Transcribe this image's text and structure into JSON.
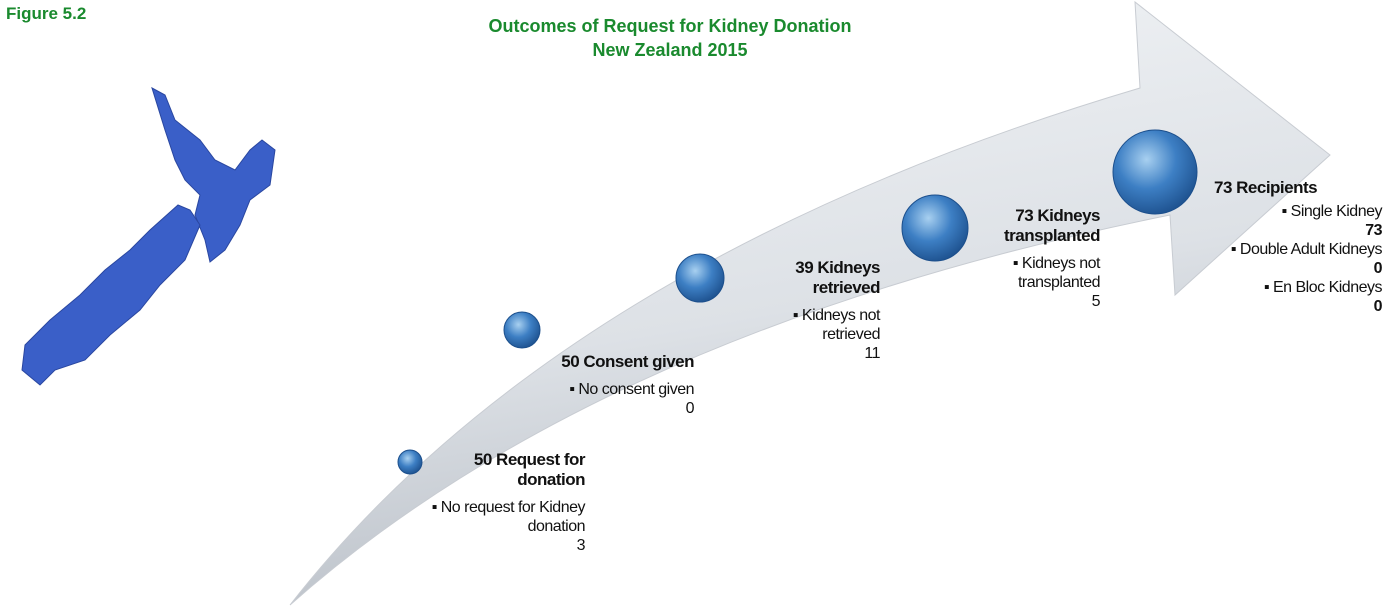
{
  "figure_label": "Figure 5.2",
  "title": [
    "Outcomes of Request for Kidney Donation",
    "New Zealand 2015"
  ],
  "steps": [
    {
      "heading": "50 Request for donation",
      "details": [
        {
          "text": "No request for Kidney donation",
          "value": "3"
        }
      ]
    },
    {
      "heading": "50 Consent given",
      "details": [
        {
          "text": "No consent given",
          "value": "0"
        }
      ]
    },
    {
      "heading": "39 Kidneys retrieved",
      "details": [
        {
          "text": "Kidneys not retrieved",
          "value": "11"
        }
      ]
    },
    {
      "heading": "73 Kidneys transplanted",
      "details": [
        {
          "text": "Kidneys not transplanted",
          "value": "5"
        }
      ]
    },
    {
      "heading": "73 Recipients",
      "details": [
        {
          "text": "Single Kidney",
          "value": "73"
        },
        {
          "text": "Double Adult Kidneys",
          "value": "0"
        },
        {
          "text": "En Bloc Kidneys",
          "value": "0"
        }
      ]
    }
  ]
}
